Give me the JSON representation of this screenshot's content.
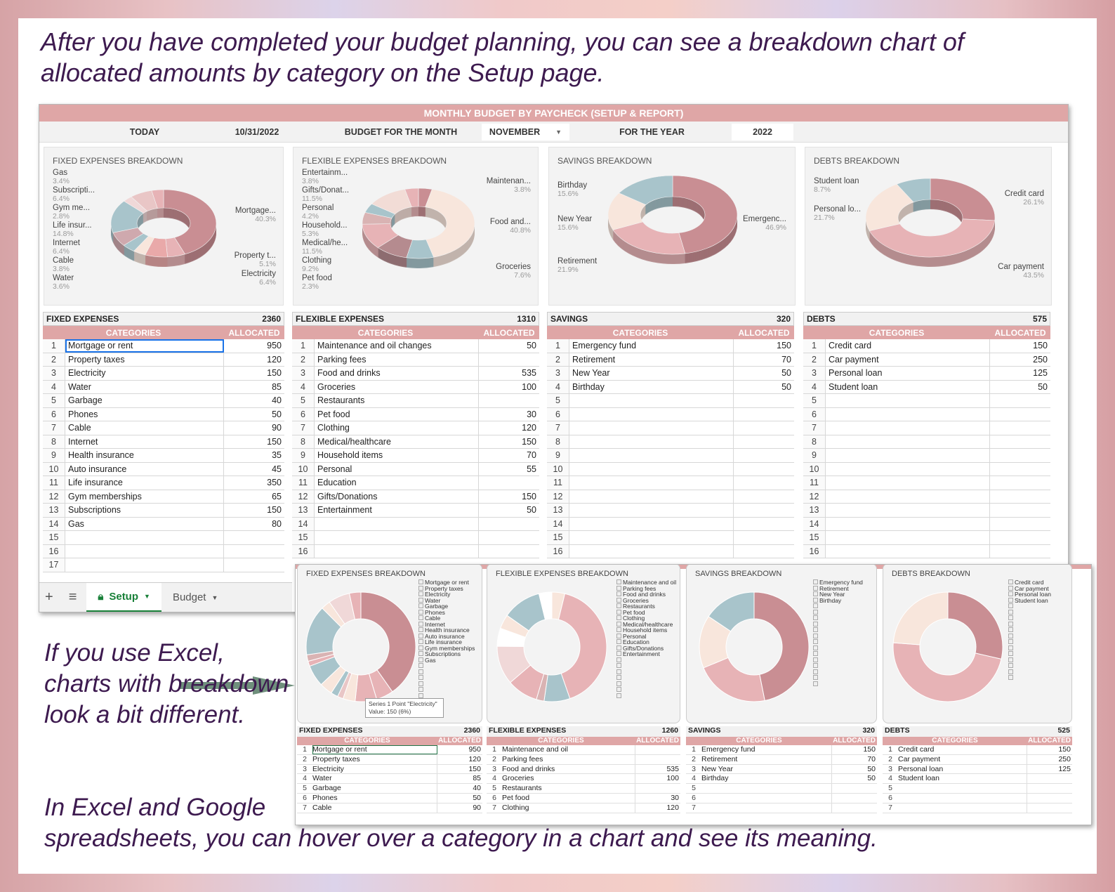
{
  "intro_text": "After you have completed your budget planning, you can see a breakdown chart of allocated amounts by category on the Setup page.",
  "excel_note": "If you use Excel, charts with breakdown look a bit different.",
  "hover_note": {
    "line1": "In Excel and Google",
    "line2": "spreadsheets, you can hover over a category in a chart and see its meaning."
  },
  "sheet": {
    "title": "MONTHLY BUDGET BY PAYCHECK (SETUP & REPORT)",
    "today_label": "TODAY",
    "today_value": "10/31/2022",
    "budget_month_label": "BUDGET FOR THE MONTH",
    "month_value": "NOVEMBER",
    "year_label": "FOR THE YEAR",
    "year_value": "2022",
    "tabs": {
      "add": "+",
      "list": "≡",
      "setup": "Setup",
      "budget": "Budget"
    }
  },
  "colors": {
    "header_pink": "#dfa6a6",
    "rose": "#c98e93",
    "pink": "#e7b3b6",
    "cream": "#f8e6dc",
    "blue": "#a8c4cb",
    "text_purple": "#3d1a4f",
    "arrow_green": "#6f8f7c"
  },
  "charts": {
    "fixed": {
      "title": "FIXED EXPENSES BREAKDOWN",
      "labels": [
        {
          "name": "Gas",
          "pct": "3.4%"
        },
        {
          "name": "Subscripti...",
          "pct": "6.4%"
        },
        {
          "name": "Gym me...",
          "pct": "2.8%"
        },
        {
          "name": "Life insur...",
          "pct": "14.8%"
        },
        {
          "name": "Internet",
          "pct": "6.4%"
        },
        {
          "name": "Cable",
          "pct": "3.8%"
        },
        {
          "name": "Water",
          "pct": "3.6%"
        },
        {
          "name": "Mortgage...",
          "pct": "40.3%"
        },
        {
          "name": "Property t...",
          "pct": "5.1%"
        },
        {
          "name": "Electricity",
          "pct": "6.4%"
        }
      ]
    },
    "flexible": {
      "title": "FLEXIBLE EXPENSES BREAKDOWN",
      "labels": [
        {
          "name": "Entertainm...",
          "pct": "3.8%"
        },
        {
          "name": "Gifts/Donat...",
          "pct": "11.5%"
        },
        {
          "name": "Personal",
          "pct": "4.2%"
        },
        {
          "name": "Household...",
          "pct": "5.3%"
        },
        {
          "name": "Medical/he...",
          "pct": "11.5%"
        },
        {
          "name": "Clothing",
          "pct": "9.2%"
        },
        {
          "name": "Pet food",
          "pct": "2.3%"
        },
        {
          "name": "Maintenan...",
          "pct": "3.8%"
        },
        {
          "name": "Food and...",
          "pct": "40.8%"
        },
        {
          "name": "Groceries",
          "pct": "7.6%"
        }
      ]
    },
    "savings": {
      "title": "SAVINGS BREAKDOWN",
      "labels": [
        {
          "name": "Birthday",
          "pct": "15.6%"
        },
        {
          "name": "New Year",
          "pct": "15.6%"
        },
        {
          "name": "Retirement",
          "pct": "21.9%"
        },
        {
          "name": "Emergenc...",
          "pct": "46.9%"
        }
      ]
    },
    "debts": {
      "title": "DEBTS BREAKDOWN",
      "labels": [
        {
          "name": "Student loan",
          "pct": "8.7%"
        },
        {
          "name": "Personal lo...",
          "pct": "21.7%"
        },
        {
          "name": "Credit card",
          "pct": "26.1%"
        },
        {
          "name": "Car payment",
          "pct": "43.5%"
        }
      ]
    }
  },
  "tables": {
    "fixed": {
      "title": "FIXED EXPENSES",
      "total": "2360",
      "col_categories": "CATEGORIES",
      "col_allocated": "ALLOCATED",
      "rows": [
        {
          "n": "1",
          "cat": "Mortgage or rent",
          "val": "950"
        },
        {
          "n": "2",
          "cat": "Property taxes",
          "val": "120"
        },
        {
          "n": "3",
          "cat": "Electricity",
          "val": "150"
        },
        {
          "n": "4",
          "cat": "Water",
          "val": "85"
        },
        {
          "n": "5",
          "cat": "Garbage",
          "val": "40"
        },
        {
          "n": "6",
          "cat": "Phones",
          "val": "50"
        },
        {
          "n": "7",
          "cat": "Cable",
          "val": "90"
        },
        {
          "n": "8",
          "cat": "Internet",
          "val": "150"
        },
        {
          "n": "9",
          "cat": "Health insurance",
          "val": "35"
        },
        {
          "n": "10",
          "cat": "Auto insurance",
          "val": "45"
        },
        {
          "n": "11",
          "cat": "Life insurance",
          "val": "350"
        },
        {
          "n": "12",
          "cat": "Gym memberships",
          "val": "65"
        },
        {
          "n": "13",
          "cat": "Subscriptions",
          "val": "150"
        },
        {
          "n": "14",
          "cat": "Gas",
          "val": "80"
        },
        {
          "n": "15",
          "cat": "",
          "val": ""
        },
        {
          "n": "16",
          "cat": "",
          "val": ""
        },
        {
          "n": "17",
          "cat": "",
          "val": ""
        }
      ]
    },
    "flexible": {
      "title": "FLEXIBLE EXPENSES",
      "total": "1310",
      "col_categories": "CATEGORIES",
      "col_allocated": "ALLOCATED",
      "rows": [
        {
          "n": "1",
          "cat": "Maintenance and oil changes",
          "val": "50"
        },
        {
          "n": "2",
          "cat": "Parking fees",
          "val": ""
        },
        {
          "n": "3",
          "cat": "Food and drinks",
          "val": "535"
        },
        {
          "n": "4",
          "cat": "Groceries",
          "val": "100"
        },
        {
          "n": "5",
          "cat": "Restaurants",
          "val": ""
        },
        {
          "n": "6",
          "cat": "Pet food",
          "val": "30"
        },
        {
          "n": "7",
          "cat": "Clothing",
          "val": "120"
        },
        {
          "n": "8",
          "cat": "Medical/healthcare",
          "val": "150"
        },
        {
          "n": "9",
          "cat": "Household items",
          "val": "70"
        },
        {
          "n": "10",
          "cat": "Personal",
          "val": "55"
        },
        {
          "n": "11",
          "cat": "Education",
          "val": ""
        },
        {
          "n": "12",
          "cat": "Gifts/Donations",
          "val": "150"
        },
        {
          "n": "13",
          "cat": "Entertainment",
          "val": "50"
        },
        {
          "n": "14",
          "cat": "",
          "val": ""
        },
        {
          "n": "15",
          "cat": "",
          "val": ""
        },
        {
          "n": "16",
          "cat": "",
          "val": ""
        }
      ]
    },
    "savings": {
      "title": "SAVINGS",
      "total": "320",
      "col_categories": "CATEGORIES",
      "col_allocated": "ALLOCATED",
      "rows": [
        {
          "n": "1",
          "cat": "Emergency fund",
          "val": "150"
        },
        {
          "n": "2",
          "cat": "Retirement",
          "val": "70"
        },
        {
          "n": "3",
          "cat": "New Year",
          "val": "50"
        },
        {
          "n": "4",
          "cat": "Birthday",
          "val": "50"
        },
        {
          "n": "5",
          "cat": "",
          "val": ""
        },
        {
          "n": "6",
          "cat": "",
          "val": ""
        },
        {
          "n": "7",
          "cat": "",
          "val": ""
        },
        {
          "n": "8",
          "cat": "",
          "val": ""
        },
        {
          "n": "9",
          "cat": "",
          "val": ""
        },
        {
          "n": "10",
          "cat": "",
          "val": ""
        },
        {
          "n": "11",
          "cat": "",
          "val": ""
        },
        {
          "n": "12",
          "cat": "",
          "val": ""
        },
        {
          "n": "13",
          "cat": "",
          "val": ""
        },
        {
          "n": "14",
          "cat": "",
          "val": ""
        },
        {
          "n": "15",
          "cat": "",
          "val": ""
        },
        {
          "n": "16",
          "cat": "",
          "val": ""
        }
      ]
    },
    "debts": {
      "title": "DEBTS",
      "total": "575",
      "col_categories": "CATEGORIES",
      "col_allocated": "ALLOCATED",
      "rows": [
        {
          "n": "1",
          "cat": "Credit card",
          "val": "150"
        },
        {
          "n": "2",
          "cat": "Car payment",
          "val": "250"
        },
        {
          "n": "3",
          "cat": "Personal loan",
          "val": "125"
        },
        {
          "n": "4",
          "cat": "Student loan",
          "val": "50"
        },
        {
          "n": "5",
          "cat": "",
          "val": ""
        },
        {
          "n": "6",
          "cat": "",
          "val": ""
        },
        {
          "n": "7",
          "cat": "",
          "val": ""
        },
        {
          "n": "8",
          "cat": "",
          "val": ""
        },
        {
          "n": "9",
          "cat": "",
          "val": ""
        },
        {
          "n": "10",
          "cat": "",
          "val": ""
        },
        {
          "n": "11",
          "cat": "",
          "val": ""
        },
        {
          "n": "12",
          "cat": "",
          "val": ""
        },
        {
          "n": "13",
          "cat": "",
          "val": ""
        },
        {
          "n": "14",
          "cat": "",
          "val": ""
        },
        {
          "n": "15",
          "cat": "",
          "val": ""
        },
        {
          "n": "16",
          "cat": "",
          "val": ""
        }
      ]
    }
  },
  "excel": {
    "charts": [
      {
        "title": "FIXED EXPENSES BREAKDOWN",
        "legend": [
          "Mortgage or rent",
          "Property taxes",
          "Electricity",
          "Water",
          "Garbage",
          "Phones",
          "Cable",
          "Internet",
          "Health insurance",
          "Auto insurance",
          "Life insurance",
          "Gym memberships",
          "Subscriptions",
          "Gas",
          "",
          "",
          "",
          "",
          "",
          ""
        ]
      },
      {
        "title": "FLEXIBLE EXPENSES BREAKDOWN",
        "legend": [
          "Maintenance and oil",
          "Parking fees",
          "Food and drinks",
          "Groceries",
          "Restaurants",
          "Pet food",
          "Clothing",
          "Medical/healthcare",
          "Household items",
          "Personal",
          "Education",
          "Gifts/Donations",
          "Entertainment",
          "",
          "",
          "",
          "",
          "",
          "",
          ""
        ]
      },
      {
        "title": "SAVINGS BREAKDOWN",
        "legend": [
          "Emergency fund",
          "Retirement",
          "New Year",
          "Birthday",
          "",
          "",
          "",
          "",
          "",
          "",
          "",
          "",
          "",
          "",
          "",
          "",
          "",
          ""
        ]
      },
      {
        "title": "DEBTS BREAKDOWN",
        "legend": [
          "Credit card",
          "Car payment",
          "Personal loan",
          "Student loan",
          "",
          "",
          "",
          "",
          "",
          "",
          "",
          "",
          "",
          "",
          "",
          "",
          ""
        ]
      }
    ],
    "tooltip_line1": "Series 1 Point \"Electricity\"",
    "tooltip_line2": "Value: 150 (6%)",
    "tables": [
      {
        "title": "FIXED EXPENSES",
        "total": "2360",
        "c1": "CATEGORIES",
        "c2": "ALLOCATED",
        "rows": [
          [
            "1",
            "Mortgage or rent",
            "950"
          ],
          [
            "2",
            "Property taxes",
            "120"
          ],
          [
            "3",
            "Electricity",
            "150"
          ],
          [
            "4",
            "Water",
            "85"
          ],
          [
            "5",
            "Garbage",
            "40"
          ],
          [
            "6",
            "Phones",
            "50"
          ],
          [
            "7",
            "Cable",
            "90"
          ]
        ]
      },
      {
        "title": "FLEXIBLE EXPENSES",
        "total": "1260",
        "c1": "CATEGORIES",
        "c2": "ALLOCATED",
        "rows": [
          [
            "1",
            "Maintenance and oil",
            ""
          ],
          [
            "2",
            "Parking fees",
            ""
          ],
          [
            "3",
            "Food and drinks",
            "535"
          ],
          [
            "4",
            "Groceries",
            "100"
          ],
          [
            "5",
            "Restaurants",
            ""
          ],
          [
            "6",
            "Pet food",
            "30"
          ],
          [
            "7",
            "Clothing",
            "120"
          ]
        ]
      },
      {
        "title": "SAVINGS",
        "total": "320",
        "c1": "CATEGORIES",
        "c2": "ALLOCATED",
        "rows": [
          [
            "1",
            "Emergency fund",
            "150"
          ],
          [
            "2",
            "Retirement",
            "70"
          ],
          [
            "3",
            "New Year",
            "50"
          ],
          [
            "4",
            "Birthday",
            "50"
          ],
          [
            "5",
            "",
            ""
          ],
          [
            "6",
            "",
            ""
          ],
          [
            "7",
            "",
            ""
          ]
        ]
      },
      {
        "title": "DEBTS",
        "total": "525",
        "c1": "CATEGORIES",
        "c2": "ALLOCATED",
        "rows": [
          [
            "1",
            "Credit card",
            "150"
          ],
          [
            "2",
            "Car payment",
            "250"
          ],
          [
            "3",
            "Personal loan",
            "125"
          ],
          [
            "4",
            "Student loan",
            ""
          ],
          [
            "5",
            "",
            ""
          ],
          [
            "6",
            "",
            ""
          ],
          [
            "7",
            "",
            ""
          ]
        ]
      }
    ]
  }
}
